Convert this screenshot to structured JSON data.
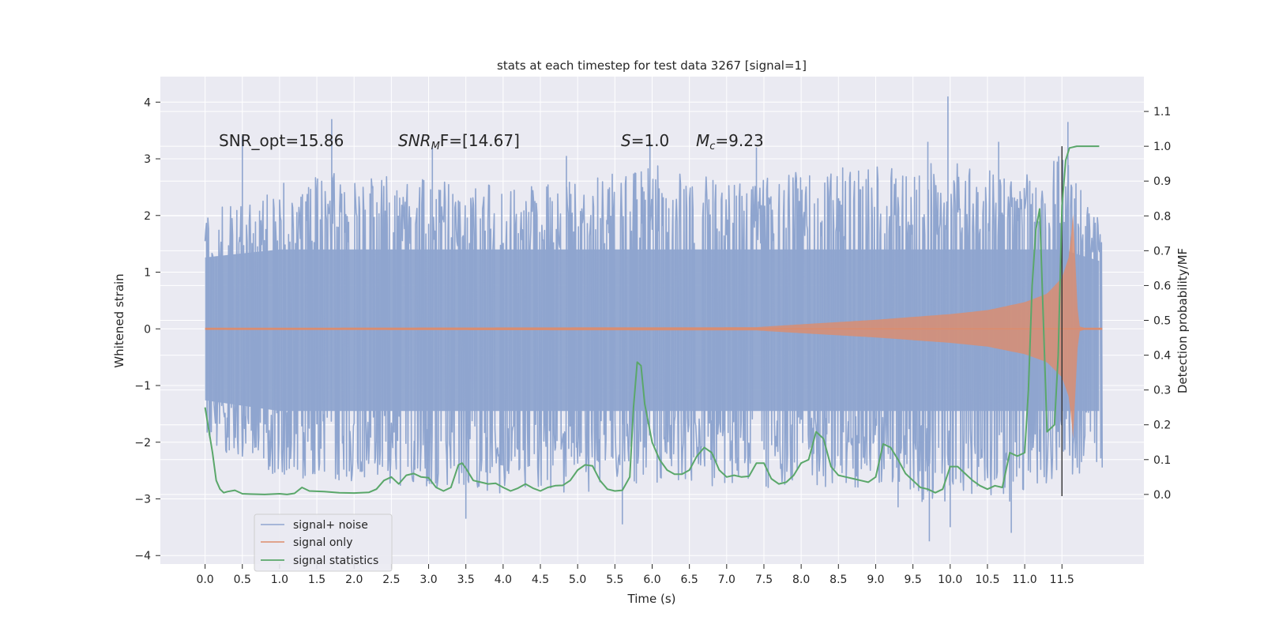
{
  "chart_data": {
    "type": "line",
    "title": "stats at each timestep for test data 3267 [signal=1]",
    "xlabel": "Time (s)",
    "ylabel": "Whitened strain",
    "ylabel_right": "Detection probability/MF",
    "xlim": [
      -0.6,
      12.6
    ],
    "ylim": [
      -4.15,
      4.45
    ],
    "ylim_right": [
      -0.2,
      1.2
    ],
    "x_ticks": [
      "0.0",
      "0.5",
      "1.0",
      "1.5",
      "2.0",
      "2.5",
      "3.0",
      "3.5",
      "4.0",
      "4.5",
      "5.0",
      "5.5",
      "6.0",
      "6.5",
      "7.0",
      "7.5",
      "8.0",
      "8.5",
      "9.0",
      "9.5",
      "10.0",
      "10.5",
      "11.0",
      "11.5"
    ],
    "y_ticks": [
      "4",
      "3",
      "2",
      "1",
      "0",
      "−1",
      "−2",
      "−3",
      "−4"
    ],
    "y_ticks_right": [
      "1.1",
      "1.0",
      "0.9",
      "0.8",
      "0.7",
      "0.6",
      "0.5",
      "0.4",
      "0.3",
      "0.2",
      "0.1",
      "0.0"
    ],
    "grid": true,
    "legend_position": "lower-left",
    "annotations": {
      "snr_opt": "SNR_opt=15.86",
      "snr_mf_var": "SNR",
      "snr_mf_sub": "M",
      "snr_mf_rest": "F=[14.67]",
      "s_var": "S",
      "s_rest": "=1.0",
      "mc_var": "M",
      "mc_sub": "c",
      "mc_rest": "=9.23"
    },
    "merger_time": 11.5,
    "series": [
      {
        "name": "signal+ noise",
        "color": "#8fa5cf",
        "x_range": [
          0.0,
          12.04
        ],
        "envelope": {
          "t": [
            0,
            1,
            2,
            3,
            4,
            5,
            6,
            7,
            8,
            9,
            10,
            11,
            11.5,
            12
          ],
          "upper": [
            2.1,
            2.6,
            2.8,
            2.7,
            2.5,
            2.6,
            2.9,
            2.6,
            2.8,
            2.9,
            3.0,
            2.7,
            3.2,
            2.0
          ],
          "lower": [
            -2.1,
            -2.6,
            -2.7,
            -2.8,
            -2.9,
            -2.9,
            -2.7,
            -2.8,
            -2.8,
            -2.8,
            -3.2,
            -3.0,
            -2.6,
            -2.5
          ]
        },
        "peak_spikes": [
          [
            1.7,
            3.7
          ],
          [
            9.97,
            4.1
          ],
          [
            11.58,
            3.65
          ],
          [
            0.5,
            3.4
          ],
          [
            5.97,
            3.3
          ],
          [
            9.7,
            3.3
          ],
          [
            7.4,
            3.2
          ],
          [
            10.65,
            3.3
          ],
          [
            4.85,
            3.05
          ],
          [
            3.05,
            3.2
          ],
          [
            9.3,
            -3.15
          ],
          [
            10.0,
            -3.5
          ],
          [
            5.6,
            -3.45
          ],
          [
            9.72,
            -3.75
          ],
          [
            10.82,
            -3.6
          ],
          [
            3.5,
            -3.35
          ]
        ]
      },
      {
        "name": "signal only",
        "color": "#dd8c6b",
        "x_range": [
          0.0,
          12.04
        ],
        "amplitude_profile": {
          "t": [
            0,
            7.4,
            8.0,
            9.0,
            10.0,
            10.5,
            11.0,
            11.3,
            11.5,
            11.6,
            11.65,
            11.72,
            11.8,
            12.04
          ],
          "amp": [
            0.02,
            0.03,
            0.08,
            0.16,
            0.26,
            0.33,
            0.47,
            0.62,
            0.9,
            1.3,
            2.05,
            0.05,
            0.02,
            0.02
          ]
        }
      },
      {
        "name": "signal statistics",
        "color": "#5aa76a",
        "axis": "right",
        "x": [
          0.0,
          0.1,
          0.15,
          0.2,
          0.25,
          0.3,
          0.4,
          0.5,
          0.6,
          0.8,
          1.0,
          1.1,
          1.2,
          1.3,
          1.4,
          1.6,
          1.8,
          2.0,
          2.2,
          2.3,
          2.4,
          2.5,
          2.6,
          2.7,
          2.8,
          2.9,
          3.0,
          3.1,
          3.2,
          3.3,
          3.4,
          3.45,
          3.5,
          3.6,
          3.7,
          3.8,
          3.9,
          4.0,
          4.1,
          4.2,
          4.3,
          4.4,
          4.5,
          4.6,
          4.7,
          4.8,
          4.9,
          5.0,
          5.1,
          5.2,
          5.3,
          5.4,
          5.5,
          5.6,
          5.7,
          5.75,
          5.8,
          5.85,
          5.9,
          6.0,
          6.1,
          6.2,
          6.3,
          6.4,
          6.5,
          6.6,
          6.7,
          6.8,
          6.9,
          7.0,
          7.1,
          7.2,
          7.3,
          7.4,
          7.5,
          7.6,
          7.7,
          7.8,
          7.9,
          8.0,
          8.1,
          8.2,
          8.3,
          8.4,
          8.5,
          8.6,
          8.7,
          8.8,
          8.9,
          9.0,
          9.1,
          9.2,
          9.3,
          9.4,
          9.5,
          9.6,
          9.7,
          9.8,
          9.9,
          10.0,
          10.1,
          10.2,
          10.3,
          10.4,
          10.5,
          10.6,
          10.7,
          10.8,
          10.9,
          11.0,
          11.05,
          11.1,
          11.15,
          11.2,
          11.3,
          11.4,
          11.45,
          11.5,
          11.55,
          11.6,
          11.7,
          11.8,
          11.9,
          12.0
        ],
        "y": [
          0.25,
          0.12,
          0.04,
          0.015,
          0.005,
          0.008,
          0.012,
          0.002,
          0.001,
          0.0,
          0.002,
          0.0,
          0.003,
          0.02,
          0.01,
          0.008,
          0.005,
          0.004,
          0.006,
          0.015,
          0.04,
          0.05,
          0.03,
          0.055,
          0.06,
          0.05,
          0.048,
          0.02,
          0.01,
          0.02,
          0.085,
          0.09,
          0.075,
          0.04,
          0.035,
          0.03,
          0.032,
          0.02,
          0.01,
          0.018,
          0.03,
          0.018,
          0.01,
          0.02,
          0.025,
          0.026,
          0.04,
          0.07,
          0.085,
          0.082,
          0.04,
          0.015,
          0.01,
          0.012,
          0.05,
          0.25,
          0.38,
          0.37,
          0.26,
          0.15,
          0.1,
          0.07,
          0.058,
          0.058,
          0.07,
          0.11,
          0.135,
          0.12,
          0.07,
          0.05,
          0.055,
          0.05,
          0.052,
          0.09,
          0.09,
          0.045,
          0.03,
          0.035,
          0.055,
          0.09,
          0.1,
          0.18,
          0.16,
          0.08,
          0.055,
          0.05,
          0.045,
          0.04,
          0.035,
          0.05,
          0.145,
          0.135,
          0.1,
          0.06,
          0.04,
          0.02,
          0.015,
          0.005,
          0.015,
          0.08,
          0.08,
          0.06,
          0.04,
          0.025,
          0.015,
          0.025,
          0.02,
          0.12,
          0.11,
          0.12,
          0.3,
          0.6,
          0.76,
          0.82,
          0.18,
          0.2,
          0.4,
          0.83,
          0.96,
          0.995,
          1.0,
          1.0,
          1.0,
          1.0
        ]
      }
    ],
    "merger_line": {
      "x": 11.5,
      "y_start": -0.005,
      "y_end": 1.0,
      "color": "#333333",
      "axis": "right"
    }
  }
}
